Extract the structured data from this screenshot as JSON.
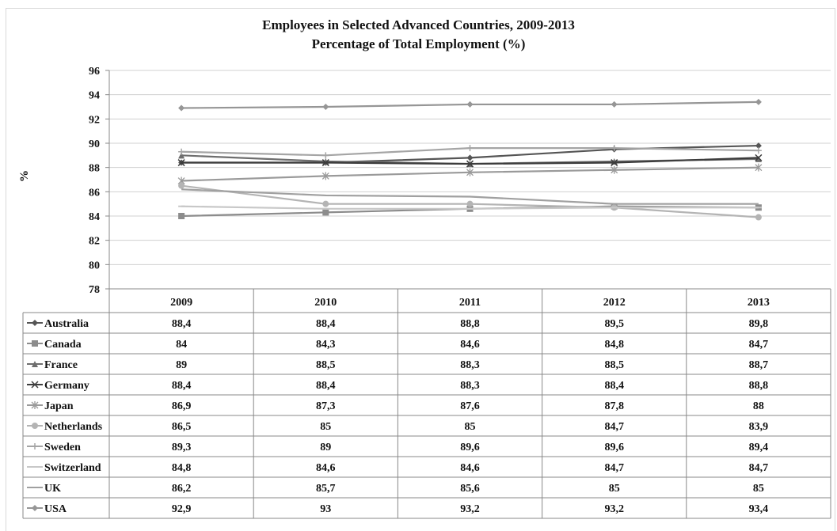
{
  "chart_data": {
    "type": "line",
    "title": "Employees in Selected Advanced Countries, 2009-2013",
    "subtitle": "Percentage of Total Employment (%)",
    "xlabel": "",
    "ylabel": "%",
    "ylim": [
      78,
      96
    ],
    "yticks": [
      "78",
      "80",
      "82",
      "84",
      "86",
      "88",
      "90",
      "92",
      "94",
      "96"
    ],
    "grid": "horizontal",
    "legend": "data-table",
    "categories": [
      "2009",
      "2010",
      "2011",
      "2012",
      "2013"
    ],
    "series": [
      {
        "name": "Australia",
        "marker": "diamond",
        "color": "#555555",
        "values": [
          88.4,
          88.4,
          88.8,
          89.5,
          89.8
        ],
        "labels": [
          "88,4",
          "88,4",
          "88,8",
          "89,5",
          "89,8"
        ]
      },
      {
        "name": "Canada",
        "marker": "square",
        "color": "#8c8c8c",
        "values": [
          84,
          84.3,
          84.6,
          84.8,
          84.7
        ],
        "labels": [
          "84",
          "84,3",
          "84,6",
          "84,8",
          "84,7"
        ]
      },
      {
        "name": "France",
        "marker": "triangle",
        "color": "#6e6e6e",
        "values": [
          89,
          88.5,
          88.3,
          88.5,
          88.7
        ],
        "labels": [
          "89",
          "88,5",
          "88,3",
          "88,5",
          "88,7"
        ]
      },
      {
        "name": "Germany",
        "marker": "x",
        "color": "#3c3c3c",
        "values": [
          88.4,
          88.4,
          88.3,
          88.4,
          88.8
        ],
        "labels": [
          "88,4",
          "88,4",
          "88,3",
          "88,4",
          "88,8"
        ]
      },
      {
        "name": "Japan",
        "marker": "star",
        "color": "#9a9a9a",
        "values": [
          86.9,
          87.3,
          87.6,
          87.8,
          88
        ],
        "labels": [
          "86,9",
          "87,3",
          "87,6",
          "87,8",
          "88"
        ]
      },
      {
        "name": "Netherlands",
        "marker": "circle",
        "color": "#b4b4b4",
        "values": [
          86.5,
          85,
          85,
          84.7,
          83.9
        ],
        "labels": [
          "86,5",
          "85",
          "85",
          "84,7",
          "83,9"
        ]
      },
      {
        "name": "Sweden",
        "marker": "plus",
        "color": "#a5a5a5",
        "values": [
          89.3,
          89,
          89.6,
          89.6,
          89.4
        ],
        "labels": [
          "89,3",
          "89",
          "89,6",
          "89,6",
          "89,4"
        ]
      },
      {
        "name": "Switzerland",
        "marker": "dash",
        "color": "#c8c8c8",
        "values": [
          84.8,
          84.6,
          84.6,
          84.7,
          84.7
        ],
        "labels": [
          "84,8",
          "84,6",
          "84,6",
          "84,7",
          "84,7"
        ]
      },
      {
        "name": "UK",
        "marker": "none",
        "color": "#a0a0a0",
        "values": [
          86.2,
          85.7,
          85.6,
          85,
          85
        ],
        "labels": [
          "86,2",
          "85,7",
          "85,6",
          "85",
          "85"
        ]
      },
      {
        "name": "USA",
        "marker": "diamond",
        "color": "#969696",
        "values": [
          92.9,
          93,
          93.2,
          93.2,
          93.4
        ],
        "labels": [
          "92,9",
          "93",
          "93,2",
          "93,2",
          "93,4"
        ]
      }
    ]
  }
}
